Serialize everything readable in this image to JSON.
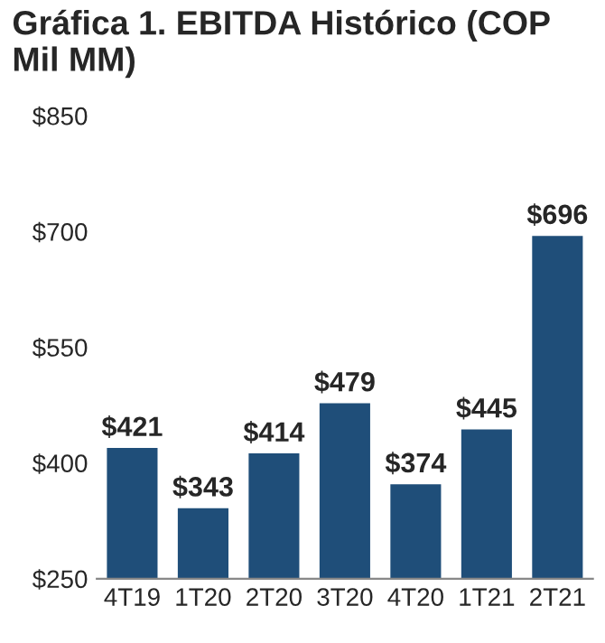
{
  "chart_data": {
    "type": "bar",
    "title": "Gráfica 1. EBITDA Histórico (COP Mil MM)",
    "categories": [
      "4T19",
      "1T20",
      "2T20",
      "3T20",
      "4T20",
      "1T21",
      "2T21"
    ],
    "values": [
      421,
      343,
      414,
      479,
      374,
      445,
      696
    ],
    "value_labels": [
      "$421",
      "$343",
      "$414",
      "$479",
      "$374",
      "$445",
      "$696"
    ],
    "color": "#1f4e79",
    "ylim": [
      250,
      850
    ],
    "yticks": [
      {
        "value": 250,
        "label": "$250"
      },
      {
        "value": 400,
        "label": "$400"
      },
      {
        "value": 550,
        "label": "$550"
      },
      {
        "value": 700,
        "label": "$700"
      },
      {
        "value": 850,
        "label": "$850"
      }
    ],
    "grid": false
  }
}
